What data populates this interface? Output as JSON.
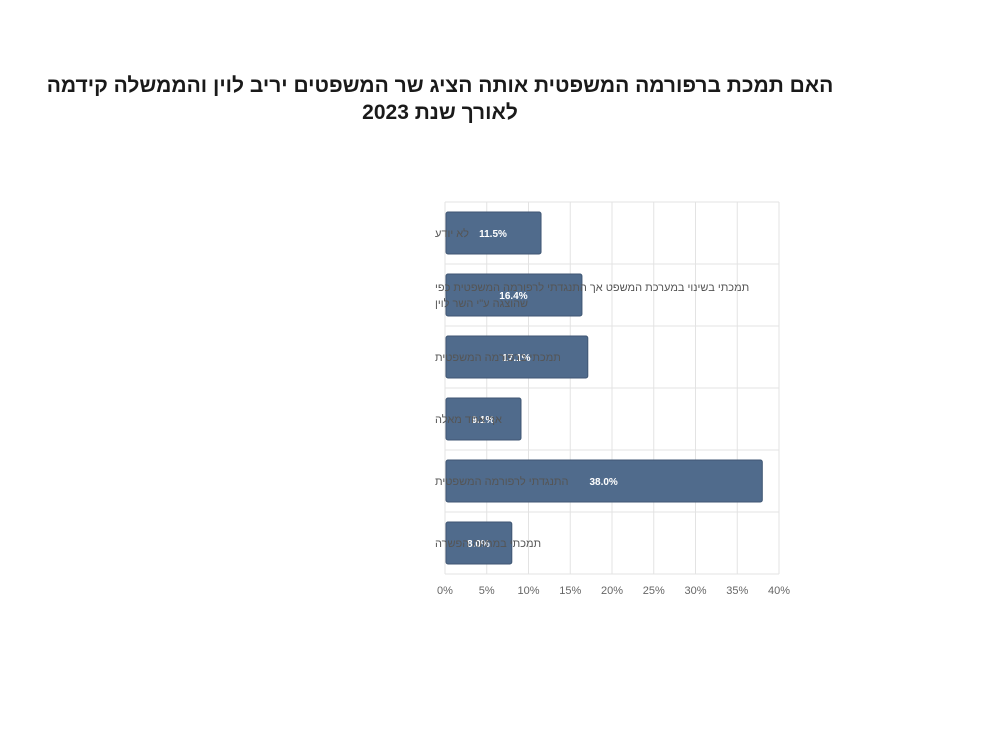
{
  "chart_data": {
    "type": "bar",
    "orientation": "horizontal",
    "title": "האם תמכת ברפורמה המשפטית אותה הציג שר המשפטים יריב לוין והממשלה קידמה לאורך שנת 2023",
    "categories": [
      "לא יודע",
      "תמכתי בשינוי במערכת המשפט אך התנגדתי לרפורמה המשפטית כפי שהוצגה ע\"י השר לוין",
      "תמכתי ברפורמה המשפטית",
      "אף אחד מאלה",
      "התנגדתי לרפורמה המשפטית",
      "תמכתי במתווה הפשרה"
    ],
    "values": [
      11.5,
      16.4,
      17.1,
      9.1,
      38.0,
      8.0
    ],
    "data_labels": [
      "11.5%",
      "16.4%",
      "17.1%",
      "9.1%",
      "38.0%",
      "8.0%"
    ],
    "xlim": [
      0,
      40
    ],
    "x_ticks": [
      "0%",
      "5%",
      "10%",
      "15%",
      "20%",
      "25%",
      "30%",
      "35%",
      "40%"
    ],
    "xlabel": "",
    "ylabel": "",
    "grid": true,
    "legend": "none",
    "colors": {
      "bar": "#506b8c",
      "bar_stroke": "#3f5673",
      "grid": "#e3e3e3",
      "title": "#1a1a1a",
      "category_text": "#555555",
      "tick_text": "#666666",
      "data_label_text": "#ffffff"
    }
  }
}
